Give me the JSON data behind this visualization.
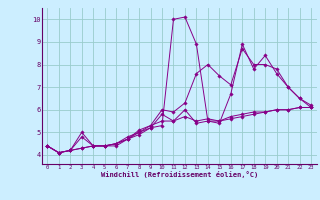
{
  "xlabel": "Windchill (Refroidissement éolien,°C)",
  "xlim": [
    -0.5,
    23.5
  ],
  "ylim": [
    3.6,
    10.5
  ],
  "yticks": [
    4,
    5,
    6,
    7,
    8,
    9,
    10
  ],
  "xticks": [
    0,
    1,
    2,
    3,
    4,
    5,
    6,
    7,
    8,
    9,
    10,
    11,
    12,
    13,
    14,
    15,
    16,
    17,
    18,
    19,
    20,
    21,
    22,
    23
  ],
  "bg_color": "#cceeff",
  "line_color": "#880088",
  "grid_color": "#99cccc",
  "axis_color": "#660066",
  "series": [
    [
      4.4,
      4.1,
      4.2,
      5.0,
      4.4,
      4.4,
      4.4,
      4.7,
      4.9,
      5.2,
      5.3,
      10.0,
      10.1,
      8.9,
      5.5,
      5.4,
      6.7,
      8.9,
      7.8,
      8.4,
      7.6,
      7.0,
      6.5,
      6.1
    ],
    [
      4.4,
      4.1,
      4.2,
      4.3,
      4.4,
      4.4,
      4.5,
      4.7,
      5.0,
      5.2,
      5.8,
      5.5,
      6.0,
      5.4,
      5.5,
      5.5,
      5.6,
      5.7,
      5.8,
      5.9,
      6.0,
      6.0,
      6.1,
      6.1
    ],
    [
      4.4,
      4.1,
      4.2,
      4.8,
      4.4,
      4.4,
      4.5,
      4.7,
      5.1,
      5.3,
      6.0,
      5.9,
      6.3,
      7.6,
      8.0,
      7.5,
      7.1,
      8.7,
      8.0,
      8.0,
      7.8,
      7.0,
      6.5,
      6.2
    ],
    [
      4.4,
      4.1,
      4.2,
      4.3,
      4.4,
      4.4,
      4.5,
      4.8,
      5.0,
      5.3,
      5.5,
      5.5,
      5.7,
      5.5,
      5.6,
      5.5,
      5.7,
      5.8,
      5.9,
      5.9,
      6.0,
      6.0,
      6.1,
      6.1
    ]
  ]
}
